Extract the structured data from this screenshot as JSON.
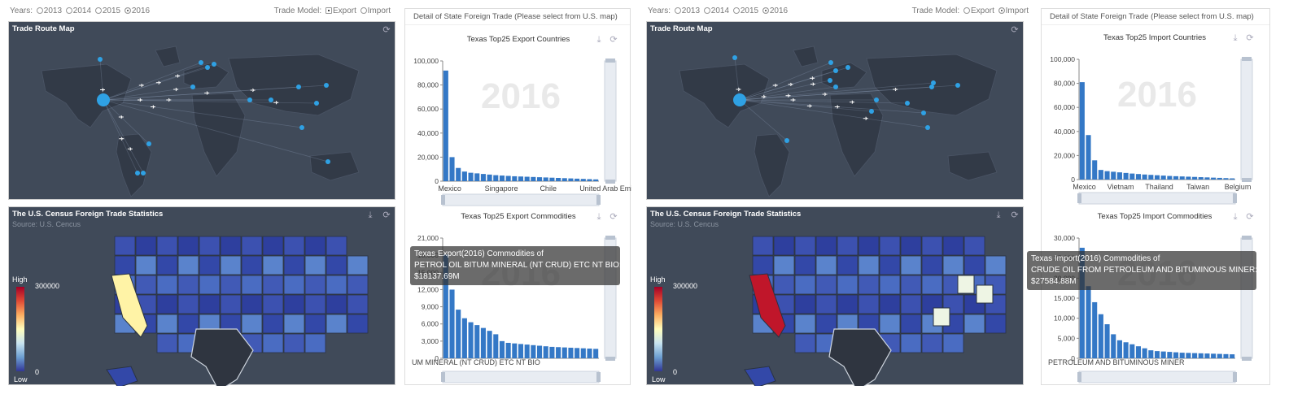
{
  "controls": {
    "years_label": "Years:",
    "years": [
      "2013",
      "2014",
      "2015",
      "2016"
    ],
    "model_label": "Trade Model:",
    "models": [
      "Export",
      "Import"
    ]
  },
  "route_map": {
    "title": "Trade Route Map"
  },
  "census_map": {
    "title": "The U.S. Census Foreign Trade Statistics",
    "source": "Source: U.S. Cencus",
    "legend_high": "High",
    "legend_low": "Low",
    "legend_max": "300000",
    "legend_min": "0"
  },
  "detail": {
    "header": "Detail of State Foreign Trade (Please select from U.S. map)"
  },
  "watermark": "2016",
  "colors": {
    "dark_bg": "#404a59",
    "bar": "#3478c6",
    "route_dot": "#2fa1e4",
    "selected_state": "#2f3540"
  },
  "dashboards": [
    {
      "selected_year": "2016",
      "selected_model": "Export",
      "countries_title": "Texas Top25 Export Countries",
      "commodities_title": "Texas Top25 Export Commodities",
      "tooltip": {
        "line1": "Texas Export(2016) Commodities of",
        "line2": "PETROL OIL BITUM MINERAL (NT CRUD) ETC NT BIO:",
        "line3": "$18137.69M"
      },
      "commodities_axis_label": "UM MINERAL (NT CRUD) ETC NT BIO"
    },
    {
      "selected_year": "2016",
      "selected_model": "Import",
      "countries_title": "Texas Top25 Import Countries",
      "commodities_title": "Texas Top25 Import Commodities",
      "tooltip": {
        "line1": "Texas Import(2016) Commodities of",
        "line2": "CRUDE OIL FROM PETROLEUM AND BITUMINOUS MINER:",
        "line3": "$27584.88M"
      },
      "commodities_axis_label": "PETROLEUM AND BITUMINOUS MINER"
    }
  ],
  "chart_data": [
    {
      "type": "bar",
      "title": "Texas Top25 Export Countries",
      "categories_shown": [
        "Mexico",
        "Singapore",
        "Chile",
        "United Arab Emirates"
      ],
      "ylim": [
        0,
        100000
      ],
      "yticks": [
        "0",
        "20,000",
        "40,000",
        "60,000",
        "80,000",
        "100,000"
      ],
      "values": [
        92000,
        20000,
        11000,
        8000,
        7000,
        6500,
        6000,
        5500,
        5000,
        4700,
        4400,
        4100,
        3900,
        3700,
        3500,
        3300,
        3100,
        2900,
        2700,
        2500,
        2300,
        2100,
        1900,
        1700,
        1500
      ]
    },
    {
      "type": "bar",
      "title": "Texas Top25 Export Commodities",
      "ylim": [
        0,
        21000
      ],
      "yticks": [
        "0",
        "3,000",
        "6,000",
        "9,000",
        "12,000",
        "15,000",
        "18,000",
        "21,000"
      ],
      "values": [
        18137.69,
        12000,
        8500,
        7000,
        6300,
        5800,
        5300,
        4800,
        4200,
        3000,
        2700,
        2600,
        2500,
        2400,
        2300,
        2200,
        2100,
        2000,
        1950,
        1900,
        1850,
        1800,
        1750,
        1700,
        1650
      ]
    },
    {
      "type": "bar",
      "title": "Texas Top25 Import Countries",
      "categories_shown": [
        "Mexico",
        "Vietnam",
        "Thailand",
        "Taiwan",
        "Belgium"
      ],
      "ylim": [
        0,
        100000
      ],
      "yticks": [
        "0",
        "20,000",
        "40,000",
        "60,000",
        "80,000",
        "100,000"
      ],
      "values": [
        81000,
        37000,
        16000,
        8000,
        7000,
        6500,
        6000,
        5500,
        5000,
        4600,
        4200,
        3900,
        3600,
        3300,
        3000,
        2800,
        2600,
        2400,
        2200,
        2000,
        1800,
        1600,
        1400,
        1200,
        1000
      ]
    },
    {
      "type": "bar",
      "title": "Texas Top25 Import Commodities",
      "ylim": [
        0,
        30000
      ],
      "yticks": [
        "0",
        "5,000",
        "10,000",
        "15,000",
        "20,000",
        "25,000",
        "30,000"
      ],
      "values": [
        27584.88,
        18000,
        14000,
        11000,
        8500,
        6000,
        4500,
        4000,
        3500,
        3000,
        2500,
        2000,
        1800,
        1700,
        1600,
        1500,
        1400,
        1350,
        1300,
        1250,
        1200,
        1150,
        1100,
        1050,
        1000
      ]
    }
  ]
}
